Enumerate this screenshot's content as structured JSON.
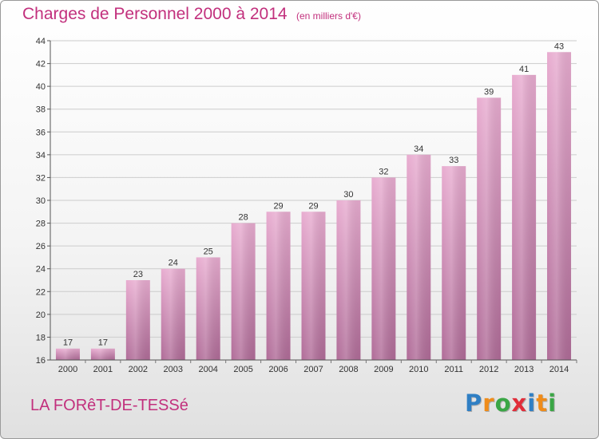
{
  "title": "Charges de Personnel 2000 à 2014",
  "subtitle": "(en milliers d'€)",
  "commune": "LA FORêT-DE-TESSé",
  "logo": {
    "letters": [
      {
        "char": "P",
        "color": "#2f7fc4"
      },
      {
        "char": "r",
        "color": "#ef8c1a"
      },
      {
        "char": "o",
        "color": "#3aa645"
      },
      {
        "char": "x",
        "color": "#e12d3a"
      },
      {
        "char": "i",
        "color": "#2f7fc4"
      },
      {
        "char": "t",
        "color": "#ef8c1a"
      },
      {
        "char": "i",
        "color": "#3aa645"
      }
    ]
  },
  "colors": {
    "accent": "#c2307d",
    "bar_top": "#e8acd0",
    "bar_bottom": "#b06c98"
  },
  "chart_data": {
    "type": "bar",
    "categories": [
      "2000",
      "2001",
      "2002",
      "2003",
      "2004",
      "2005",
      "2006",
      "2007",
      "2008",
      "2009",
      "2010",
      "2011",
      "2012",
      "2013",
      "2014"
    ],
    "values": [
      17,
      17,
      23,
      24,
      25,
      28,
      29,
      29,
      30,
      32,
      34,
      33,
      39,
      41,
      43
    ],
    "title": "Charges de Personnel 2000 à 2014",
    "ylabel": "",
    "xlabel": "",
    "ylim": [
      16,
      44
    ],
    "yticks": [
      16,
      18,
      20,
      22,
      24,
      26,
      28,
      30,
      32,
      34,
      36,
      38,
      40,
      42,
      44
    ],
    "grid": true
  }
}
